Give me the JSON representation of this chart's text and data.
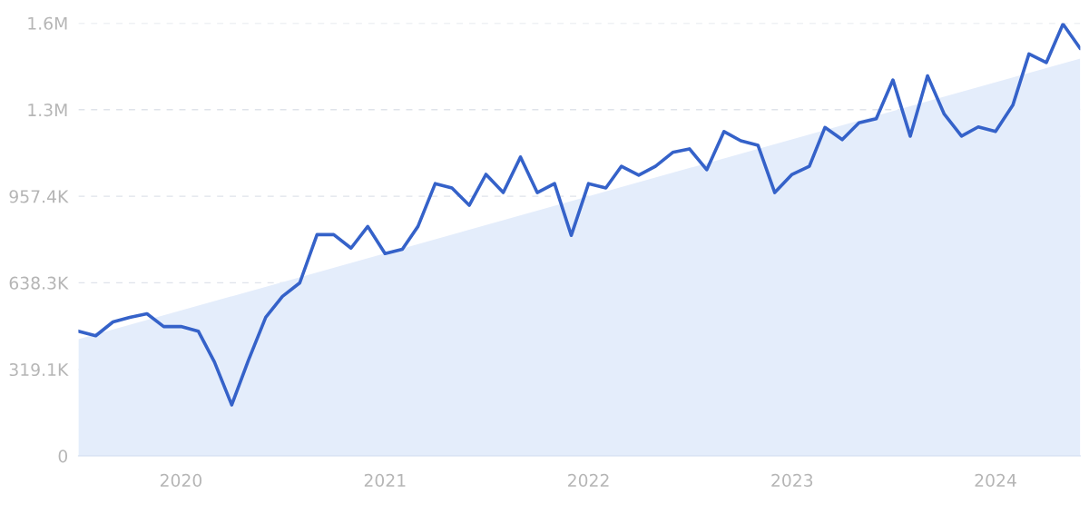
{
  "chart_data": {
    "type": "line",
    "x": [
      "2019-07",
      "2019-08",
      "2019-09",
      "2019-10",
      "2019-11",
      "2019-12",
      "2020-01",
      "2020-02",
      "2020-03",
      "2020-04",
      "2020-05",
      "2020-06",
      "2020-07",
      "2020-08",
      "2020-09",
      "2020-10",
      "2020-11",
      "2020-12",
      "2021-01",
      "2021-02",
      "2021-03",
      "2021-04",
      "2021-05",
      "2021-06",
      "2021-07",
      "2021-08",
      "2021-09",
      "2021-10",
      "2021-11",
      "2021-12",
      "2022-01",
      "2022-02",
      "2022-03",
      "2022-04",
      "2022-05",
      "2022-06",
      "2022-07",
      "2022-08",
      "2022-09",
      "2022-10",
      "2022-11",
      "2022-12",
      "2023-01",
      "2023-02",
      "2023-03",
      "2023-04",
      "2023-05",
      "2023-06",
      "2023-07",
      "2023-08",
      "2023-09",
      "2023-10",
      "2023-11",
      "2023-12",
      "2024-01",
      "2024-02",
      "2024-03",
      "2024-04",
      "2024-05",
      "2024-06"
    ],
    "series": [
      {
        "type": "area",
        "color": "#e4edfb",
        "x": [
          "2019-07",
          "2024-06"
        ],
        "values": [
          430000,
          1465000
        ]
      },
      {
        "color": "#3562c9",
        "values": [
          460000,
          443000,
          494000,
          511000,
          524000,
          477000,
          477000,
          460000,
          346000,
          188000,
          353000,
          511000,
          588000,
          638000,
          816000,
          816000,
          766000,
          846000,
          746000,
          762000,
          846000,
          1004000,
          988000,
          924000,
          1038000,
          971000,
          1102000,
          971000,
          1004000,
          813000,
          1004000,
          988000,
          1068000,
          1035000,
          1068000,
          1119000,
          1132000,
          1055000,
          1196000,
          1162000,
          1145000,
          971000,
          1038000,
          1068000,
          1211000,
          1166000,
          1228000,
          1243000,
          1386000,
          1179000,
          1401000,
          1260000,
          1179000,
          1213000,
          1196000,
          1293000,
          1482000,
          1450000,
          1592000,
          1502000
        ]
      }
    ],
    "xlim": [
      "2019-07",
      "2024-06"
    ],
    "xticks": [
      {
        "value": "2020-01",
        "label": "2020"
      },
      {
        "value": "2021-01",
        "label": "2021"
      },
      {
        "value": "2022-01",
        "label": "2022"
      },
      {
        "value": "2023-01",
        "label": "2023"
      },
      {
        "value": "2024-01",
        "label": "2024"
      }
    ],
    "ylim": [
      0,
      1595600
    ],
    "yticks": [
      0,
      {
        "value": 319100,
        "label": "319.1K"
      },
      {
        "value": 638300,
        "label": "638.3K"
      },
      {
        "value": 957400,
        "label": "957.4K"
      },
      {
        "value": 1276500,
        "label": "1.3M"
      },
      {
        "value": 1595600,
        "label": "1.6M"
      }
    ],
    "grid": "y",
    "line_style": "solid",
    "marker": "none",
    "legend": false
  }
}
